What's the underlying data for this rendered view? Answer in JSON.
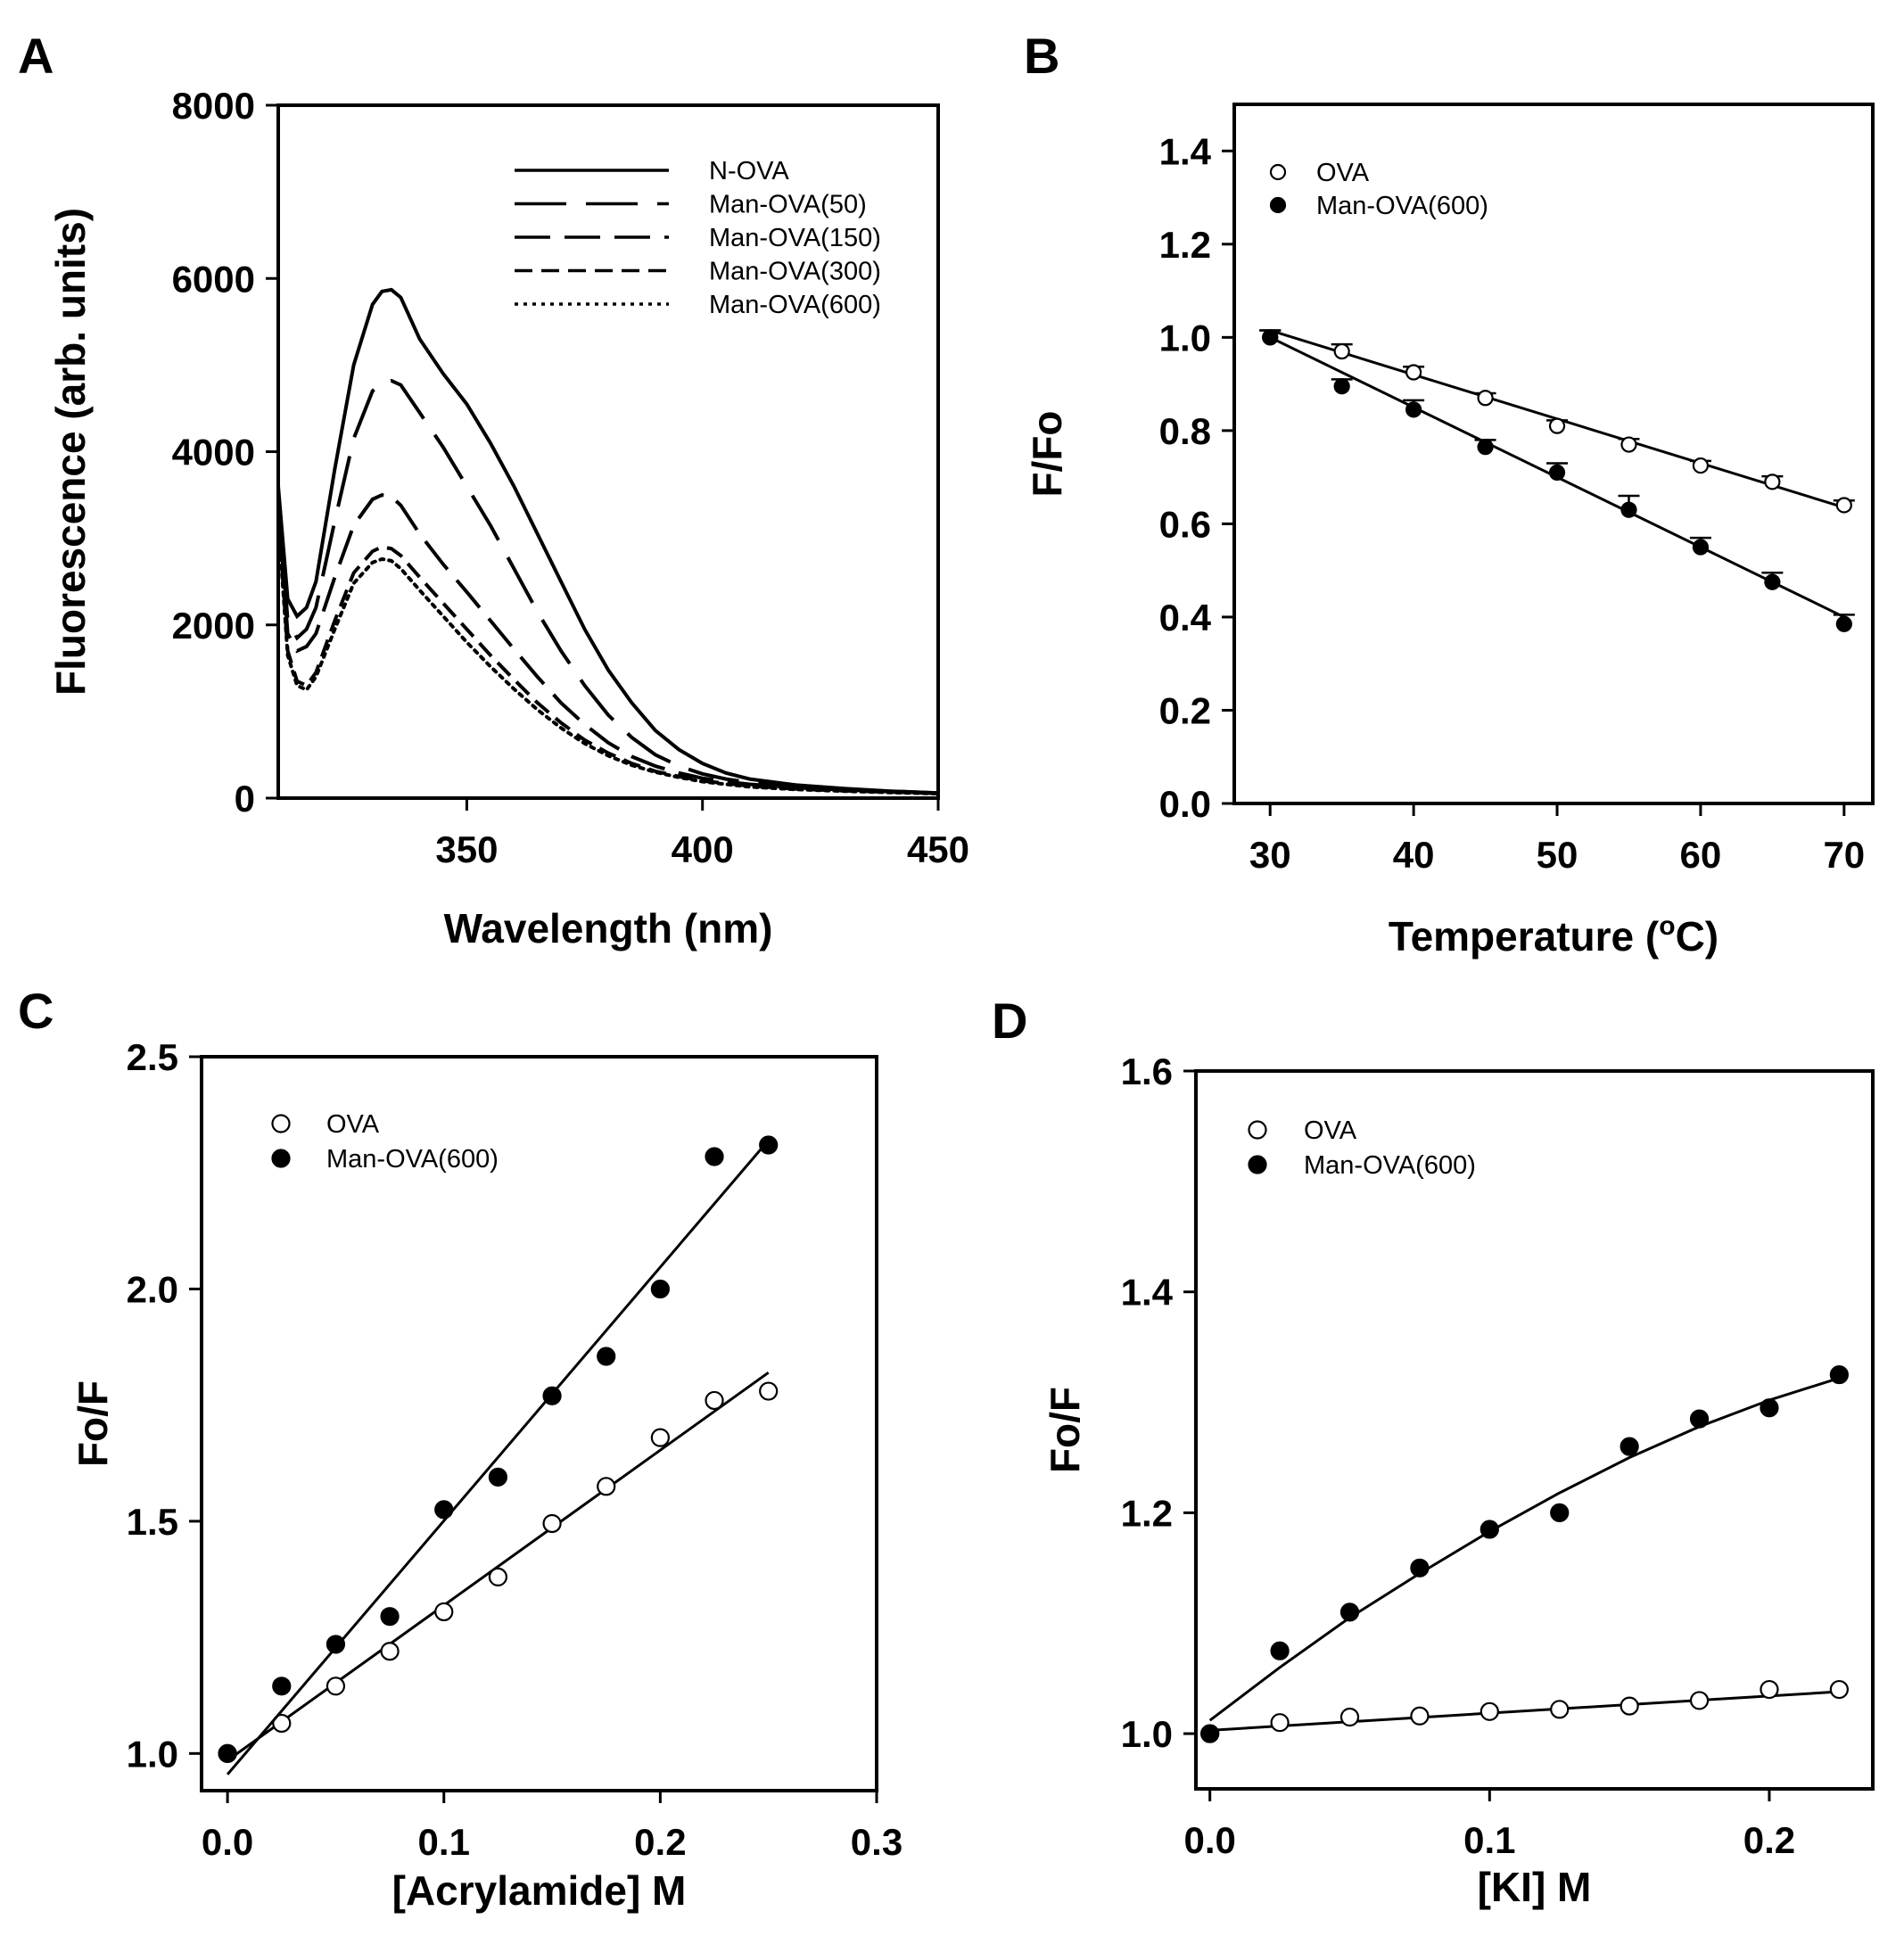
{
  "chart_data": [
    {
      "id": "A",
      "panel_label": "A",
      "type": "line",
      "xlabel": "Wavelength (nm)",
      "ylabel": "Fluorescence (arb. units)",
      "xlim": [
        310,
        450
      ],
      "ylim": [
        0,
        8000
      ],
      "xticks": [
        350,
        400,
        450
      ],
      "yticks": [
        0,
        2000,
        4000,
        6000,
        8000
      ],
      "legend_position": "top-right",
      "series": [
        {
          "name": "N-OVA",
          "dash": "solid",
          "x": [
            310,
            312,
            314,
            316,
            318,
            322,
            326,
            330,
            332,
            334,
            336,
            340,
            345,
            350,
            355,
            360,
            365,
            370,
            375,
            380,
            385,
            390,
            395,
            400,
            405,
            410,
            420,
            430,
            440,
            450
          ],
          "y": [
            3600,
            2300,
            2100,
            2200,
            2500,
            3800,
            5000,
            5700,
            5850,
            5870,
            5780,
            5300,
            4900,
            4550,
            4100,
            3600,
            3050,
            2500,
            1950,
            1480,
            1100,
            780,
            560,
            400,
            290,
            220,
            150,
            110,
            80,
            60
          ]
        },
        {
          "name": "Man-OVA(50)",
          "dash": "long-dash",
          "x": [
            310,
            312,
            314,
            316,
            318,
            322,
            326,
            330,
            332,
            334,
            336,
            340,
            345,
            350,
            355,
            360,
            365,
            370,
            375,
            380,
            385,
            390,
            395,
            400,
            405,
            410,
            420,
            430,
            440,
            450
          ],
          "y": [
            3500,
            2050,
            1850,
            1950,
            2200,
            3200,
            4150,
            4700,
            4800,
            4820,
            4770,
            4450,
            4050,
            3600,
            3150,
            2650,
            2150,
            1700,
            1300,
            960,
            700,
            500,
            370,
            280,
            220,
            180,
            130,
            100,
            80,
            60
          ]
        },
        {
          "name": "Man-OVA(150)",
          "dash": "medium-dash",
          "x": [
            310,
            312,
            314,
            316,
            318,
            322,
            326,
            330,
            332,
            334,
            336,
            340,
            345,
            350,
            355,
            360,
            365,
            370,
            375,
            380,
            385,
            390,
            395,
            400,
            405,
            410,
            420,
            430,
            440,
            450
          ],
          "y": [
            3400,
            1900,
            1700,
            1750,
            1900,
            2550,
            3150,
            3450,
            3500,
            3480,
            3380,
            3050,
            2700,
            2380,
            2050,
            1720,
            1400,
            1100,
            850,
            640,
            480,
            370,
            290,
            230,
            190,
            160,
            120,
            95,
            75,
            55
          ]
        },
        {
          "name": "Man-OVA(300)",
          "dash": "short-dash",
          "x": [
            310,
            312,
            314,
            316,
            318,
            322,
            326,
            330,
            332,
            334,
            336,
            340,
            345,
            350,
            355,
            360,
            365,
            370,
            375,
            380,
            385,
            390,
            395,
            400,
            405,
            410,
            420,
            430,
            440,
            450
          ],
          "y": [
            3300,
            1700,
            1350,
            1300,
            1450,
            2050,
            2600,
            2850,
            2900,
            2880,
            2800,
            2550,
            2250,
            1950,
            1650,
            1370,
            1100,
            870,
            670,
            520,
            400,
            310,
            250,
            200,
            170,
            140,
            105,
            85,
            70,
            55
          ]
        },
        {
          "name": "Man-OVA(600)",
          "dash": "dotted",
          "x": [
            310,
            312,
            314,
            316,
            318,
            322,
            326,
            330,
            332,
            334,
            336,
            340,
            345,
            350,
            355,
            360,
            365,
            370,
            375,
            380,
            385,
            390,
            395,
            400,
            405,
            410,
            420,
            430,
            440,
            450
          ],
          "y": [
            3200,
            1650,
            1300,
            1250,
            1400,
            1950,
            2480,
            2720,
            2760,
            2740,
            2650,
            2400,
            2100,
            1800,
            1520,
            1260,
            1020,
            810,
            630,
            490,
            380,
            300,
            240,
            190,
            160,
            130,
            100,
            80,
            65,
            50
          ]
        }
      ]
    },
    {
      "id": "B",
      "panel_label": "B",
      "type": "scatter",
      "xlabel": "Temperature (",
      "xlabel_sup": "o",
      "xlabel_suffix": "C)",
      "ylabel": "F/Fo",
      "xlim": [
        27.5,
        72
      ],
      "ylim": [
        0,
        1.5
      ],
      "xticks": [
        30,
        40,
        50,
        60,
        70
      ],
      "yticks": [
        0.0,
        0.2,
        0.4,
        0.6,
        0.8,
        1.0,
        1.2,
        1.4
      ],
      "ytick_labels": [
        "0.0",
        "0.2",
        "0.4",
        "0.6",
        "0.8",
        "1.0",
        "1.2",
        "1.4"
      ],
      "legend_position": "top-left",
      "series": [
        {
          "name": "OVA",
          "marker": "open-circle",
          "x": [
            30,
            35,
            40,
            45,
            50,
            55,
            60,
            65,
            70
          ],
          "y": [
            1.0,
            0.97,
            0.925,
            0.87,
            0.81,
            0.77,
            0.725,
            0.69,
            0.64
          ],
          "err": [
            0.015,
            0.015,
            0.012,
            0.01,
            0.012,
            0.012,
            0.01,
            0.012,
            0.01
          ],
          "fit": [
            [
              30,
              1.015
            ],
            [
              70,
              0.635
            ]
          ]
        },
        {
          "name": "Man-OVA(600)",
          "marker": "filled-circle",
          "x": [
            30,
            35,
            40,
            45,
            50,
            55,
            60,
            65,
            70
          ],
          "y": [
            1.0,
            0.895,
            0.845,
            0.765,
            0.71,
            0.63,
            0.55,
            0.475,
            0.385
          ],
          "err": [
            0.015,
            0.015,
            0.02,
            0.015,
            0.02,
            0.03,
            0.02,
            0.02,
            0.02
          ],
          "fit": [
            [
              30,
              1.0
            ],
            [
              70,
              0.4
            ]
          ]
        }
      ]
    },
    {
      "id": "C",
      "panel_label": "C",
      "type": "scatter",
      "xlabel": "[Acrylamide] M",
      "ylabel": "Fo/F",
      "xlim": [
        -0.012,
        0.3
      ],
      "ylim": [
        0.92,
        2.5
      ],
      "xticks": [
        0.0,
        0.1,
        0.2,
        0.3
      ],
      "xtick_labels": [
        "0.0",
        "0.1",
        "0.2",
        "0.3"
      ],
      "yticks": [
        1.0,
        1.5,
        2.0,
        2.5
      ],
      "ytick_labels": [
        "1.0",
        "1.5",
        "2.0",
        "2.5"
      ],
      "legend_position": "top-left",
      "series": [
        {
          "name": "OVA",
          "marker": "open-circle",
          "x": [
            0.0,
            0.025,
            0.05,
            0.075,
            0.1,
            0.125,
            0.15,
            0.175,
            0.2,
            0.225,
            0.25
          ],
          "y": [
            1.0,
            1.065,
            1.145,
            1.22,
            1.305,
            1.38,
            1.495,
            1.575,
            1.68,
            1.76,
            1.78
          ],
          "fit": [
            [
              0.0,
              0.985
            ],
            [
              0.25,
              1.82
            ]
          ]
        },
        {
          "name": "Man-OVA(600)",
          "marker": "filled-circle",
          "x": [
            0.0,
            0.025,
            0.05,
            0.075,
            0.1,
            0.125,
            0.15,
            0.175,
            0.2,
            0.225,
            0.25
          ],
          "y": [
            1.0,
            1.145,
            1.235,
            1.295,
            1.525,
            1.595,
            1.77,
            1.855,
            2.0,
            2.285,
            2.31
          ],
          "fit": [
            [
              0.0,
              0.955
            ],
            [
              0.25,
              2.32
            ]
          ]
        }
      ]
    },
    {
      "id": "D",
      "panel_label": "D",
      "type": "scatter",
      "xlabel": "[KI] M",
      "ylabel": "Fo/F",
      "xlim": [
        -0.005,
        0.237
      ],
      "ylim": [
        0.95,
        1.6
      ],
      "xticks": [
        0.0,
        0.1,
        0.2
      ],
      "xtick_labels": [
        "0.0",
        "0.1",
        "0.2"
      ],
      "yticks": [
        1.0,
        1.2,
        1.4,
        1.6
      ],
      "ytick_labels": [
        "1.0",
        "1.2",
        "1.4",
        "1.6"
      ],
      "legend_position": "top-left",
      "series": [
        {
          "name": "OVA",
          "marker": "open-circle",
          "x": [
            0.0,
            0.025,
            0.05,
            0.075,
            0.1,
            0.125,
            0.15,
            0.175,
            0.2,
            0.225
          ],
          "y": [
            1.0,
            1.01,
            1.015,
            1.016,
            1.02,
            1.022,
            1.025,
            1.03,
            1.04,
            1.04
          ],
          "fit": [
            [
              0.0,
              1.003
            ],
            [
              0.225,
              1.038
            ]
          ]
        },
        {
          "name": "Man-OVA(600)",
          "marker": "filled-circle",
          "x": [
            0.0,
            0.025,
            0.05,
            0.075,
            0.1,
            0.125,
            0.15,
            0.175,
            0.2,
            0.225
          ],
          "y": [
            1.0,
            1.075,
            1.11,
            1.15,
            1.185,
            1.2,
            1.26,
            1.285,
            1.295,
            1.325
          ],
          "fit_curve": {
            "x": [
              0.0,
              0.025,
              0.05,
              0.075,
              0.1,
              0.125,
              0.15,
              0.175,
              0.2,
              0.225
            ],
            "y": [
              1.012,
              1.06,
              1.105,
              1.145,
              1.183,
              1.218,
              1.25,
              1.278,
              1.302,
              1.322
            ]
          }
        }
      ]
    }
  ]
}
